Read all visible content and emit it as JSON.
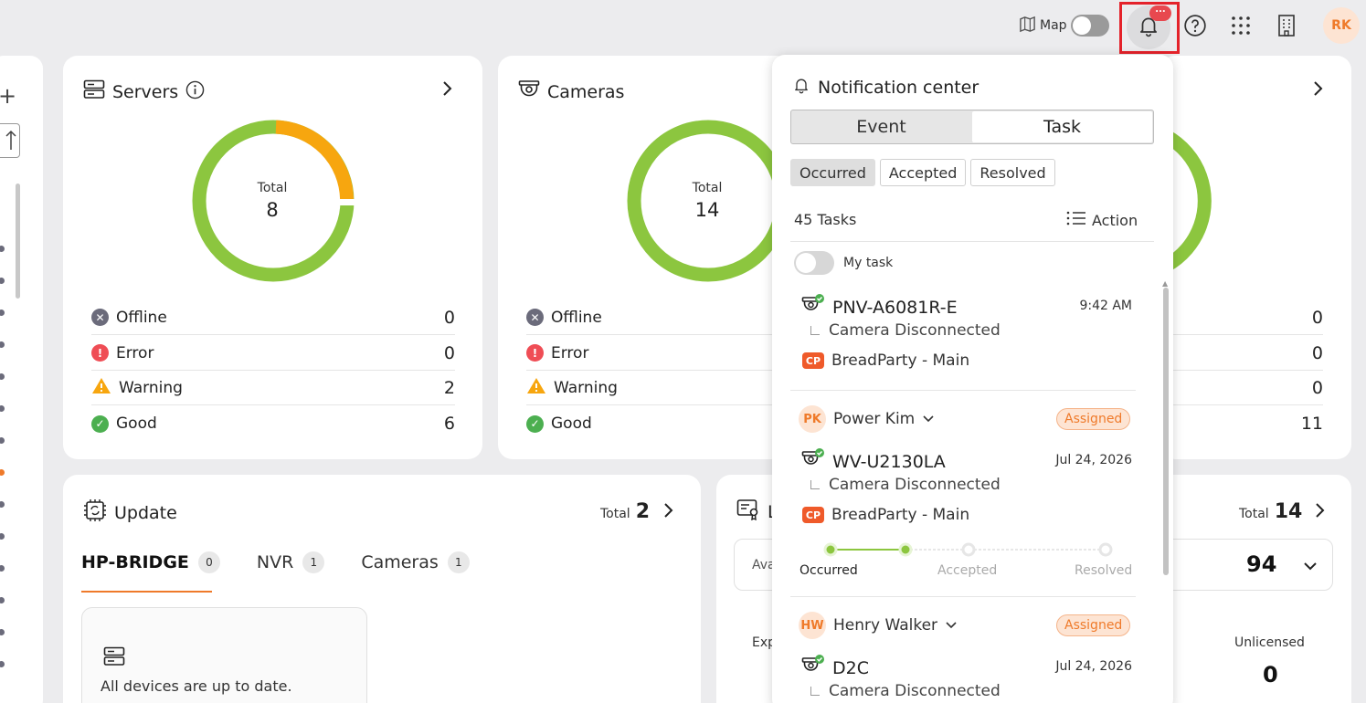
{
  "topbar": {
    "map_label": "Map",
    "map_toggle_on": false,
    "notification_badge": "...",
    "user_initials": "RK"
  },
  "servers": {
    "title": "Servers",
    "total_label": "Total",
    "total": "8",
    "rows": [
      {
        "label": "Offline",
        "value": "0",
        "status": "offline"
      },
      {
        "label": "Error",
        "value": "0",
        "status": "error"
      },
      {
        "label": "Warning",
        "value": "2",
        "status": "warning"
      },
      {
        "label": "Good",
        "value": "6",
        "status": "good"
      }
    ]
  },
  "cameras": {
    "title": "Cameras",
    "total_label": "Total",
    "total": "14",
    "rows": [
      {
        "label": "Offline",
        "status": "offline"
      },
      {
        "label": "Error",
        "status": "error"
      },
      {
        "label": "Warning",
        "status": "warning"
      },
      {
        "label": "Good",
        "status": "good"
      }
    ]
  },
  "third_card": {
    "values": [
      "0",
      "0",
      "0",
      "11"
    ]
  },
  "update": {
    "title": "Update",
    "total_label": "Total",
    "total": "2",
    "tabs": [
      {
        "label": "HP-BRIDGE",
        "count": "0"
      },
      {
        "label": "NVR",
        "count": "1"
      },
      {
        "label": "Cameras",
        "count": "1"
      }
    ],
    "empty_message": "All devices are up to date."
  },
  "license": {
    "title_partial": "L",
    "total_label": "Total",
    "total": "14",
    "available_partial": "Ava",
    "available_value": "94",
    "expired_partial": "Exp",
    "unlicensed_label": "Unlicensed",
    "unlicensed_value": "0"
  },
  "notification_center": {
    "title": "Notification center",
    "segments": [
      "Event",
      "Task"
    ],
    "selected_segment": "Task",
    "filters": [
      "Occurred",
      "Accepted",
      "Resolved"
    ],
    "selected_filter": "Occurred",
    "task_count": "45 Tasks",
    "action_label": "Action",
    "my_task_label": "My task",
    "tasks": [
      {
        "camera": "PNV-A6081R-E",
        "time": "9:42 AM",
        "event": "Camera Disconnected",
        "site": "BreadParty - Main"
      },
      {
        "user_initials": "PK",
        "user_name": "Power Kim",
        "status": "Assigned",
        "camera": "WV-U2130LA",
        "time": "Jul 24, 2026",
        "event": "Camera Disconnected",
        "site": "BreadParty - Main",
        "steps": [
          "Occurred",
          "Accepted",
          "Resolved"
        ]
      },
      {
        "user_initials": "HW",
        "user_name": "Henry Walker",
        "status": "Assigned",
        "camera": "D2C",
        "time": "Jul 24, 2026",
        "event": "Camera Disconnected"
      }
    ]
  },
  "colors": {
    "good": "#8cc63f",
    "warning": "#f7a60f",
    "error": "#ef4d55",
    "offline": "#6b6b7b",
    "accent": "#ef7a2a",
    "highlight_box": "#e4222a"
  }
}
